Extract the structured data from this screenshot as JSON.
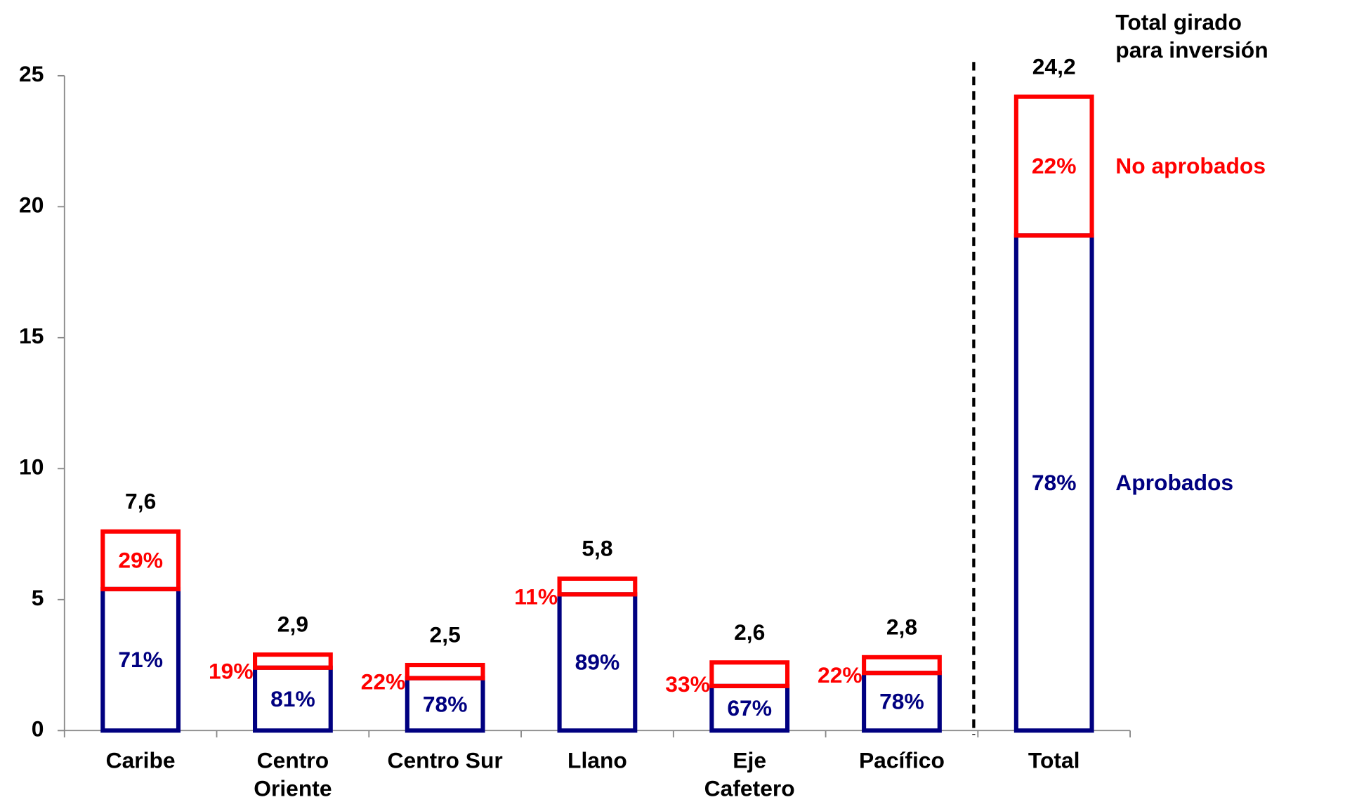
{
  "chart_data": {
    "type": "stacked_outline_bar",
    "categories": [
      "Caribe",
      "Centro\nOriente",
      "Centro Sur",
      "Llano",
      "Eje\nCafetero",
      "Pacífico",
      "Total"
    ],
    "series": [
      {
        "name": "Aprobados",
        "color": "#000080",
        "values": [
          5.4,
          2.4,
          2.0,
          5.2,
          1.7,
          2.2,
          18.9
        ],
        "labels": [
          "71%",
          "81%",
          "78%",
          "89%",
          "67%",
          "78%",
          "78%"
        ]
      },
      {
        "name": "No aprobados",
        "color": "#ff0000",
        "values": [
          2.2,
          0.5,
          0.5,
          0.6,
          0.9,
          0.6,
          5.3
        ],
        "labels": [
          "29%",
          "19%",
          "22%",
          "11%",
          "33%",
          "22%",
          "22%"
        ]
      }
    ],
    "totals": {
      "values": [
        7.6,
        2.9,
        2.5,
        5.8,
        2.6,
        2.8,
        24.2
      ],
      "value_labels": [
        "7,6",
        "2,9",
        "2,5",
        "5,8",
        "2,6",
        "2,8",
        "24,2"
      ]
    },
    "annotation": "Total girado\npara inversión",
    "ylim": [
      0,
      25
    ],
    "yticks": [
      0,
      5,
      10,
      15,
      20,
      25
    ]
  }
}
